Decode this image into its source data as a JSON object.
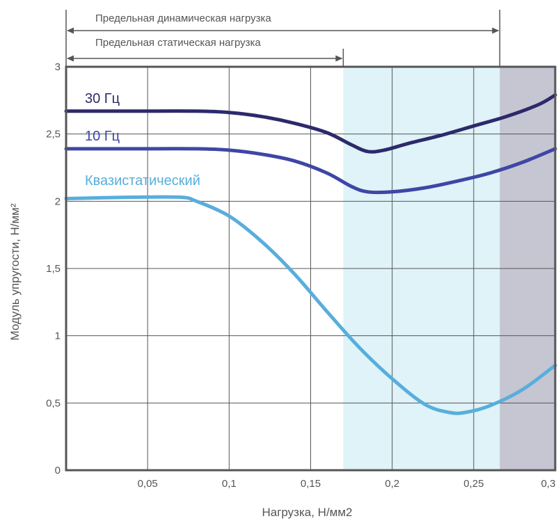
{
  "chart_data": {
    "type": "line",
    "xlabel": "Нагрузка, Н/мм2",
    "ylabel": "Модуль упругости, Н/мм²",
    "xlim": [
      0,
      0.3
    ],
    "ylim": [
      0,
      3
    ],
    "x_ticks": [
      "0,05",
      "0,1",
      "0,15",
      "0,2",
      "0,25",
      "0,3"
    ],
    "x_tick_values": [
      0.05,
      0.1,
      0.15,
      0.2,
      0.25,
      0.3
    ],
    "y_ticks": [
      "0",
      "0,5",
      "1",
      "1,5",
      "2",
      "2,5",
      "3"
    ],
    "y_tick_values": [
      0,
      0.5,
      1,
      1.5,
      2,
      2.5,
      3
    ],
    "grid": true,
    "regions": [
      {
        "from": 0.17,
        "to": 0.266,
        "color": "#dff3f8"
      },
      {
        "from": 0.266,
        "to": 0.3,
        "color": "#c6c5d2"
      }
    ],
    "limits": [
      {
        "label": "Предельная динамическая нагрузка",
        "value": 0.266
      },
      {
        "label": "Предельная статическая нагрузка",
        "value": 0.17
      }
    ],
    "series": [
      {
        "name": "30 Гц",
        "color": "#2c2a6b",
        "x": [
          0,
          0.04,
          0.08,
          0.1,
          0.12,
          0.14,
          0.16,
          0.175,
          0.185,
          0.195,
          0.21,
          0.23,
          0.25,
          0.27,
          0.29,
          0.3
        ],
        "y": [
          2.67,
          2.67,
          2.67,
          2.66,
          2.63,
          2.58,
          2.51,
          2.42,
          2.37,
          2.38,
          2.43,
          2.49,
          2.56,
          2.63,
          2.72,
          2.79
        ]
      },
      {
        "name": "10 Гц",
        "color": "#3e47a5",
        "x": [
          0,
          0.04,
          0.08,
          0.1,
          0.12,
          0.14,
          0.16,
          0.175,
          0.185,
          0.2,
          0.22,
          0.24,
          0.26,
          0.28,
          0.3
        ],
        "y": [
          2.39,
          2.39,
          2.39,
          2.38,
          2.35,
          2.3,
          2.21,
          2.11,
          2.07,
          2.07,
          2.1,
          2.15,
          2.21,
          2.29,
          2.39
        ]
      },
      {
        "name": "Квазистатический",
        "color": "#58aedc",
        "x": [
          0,
          0.04,
          0.07,
          0.08,
          0.1,
          0.12,
          0.14,
          0.16,
          0.18,
          0.2,
          0.22,
          0.235,
          0.245,
          0.26,
          0.28,
          0.3
        ],
        "y": [
          2.02,
          2.03,
          2.03,
          2.0,
          1.89,
          1.7,
          1.46,
          1.18,
          0.91,
          0.68,
          0.49,
          0.43,
          0.43,
          0.48,
          0.6,
          0.78
        ]
      }
    ]
  }
}
